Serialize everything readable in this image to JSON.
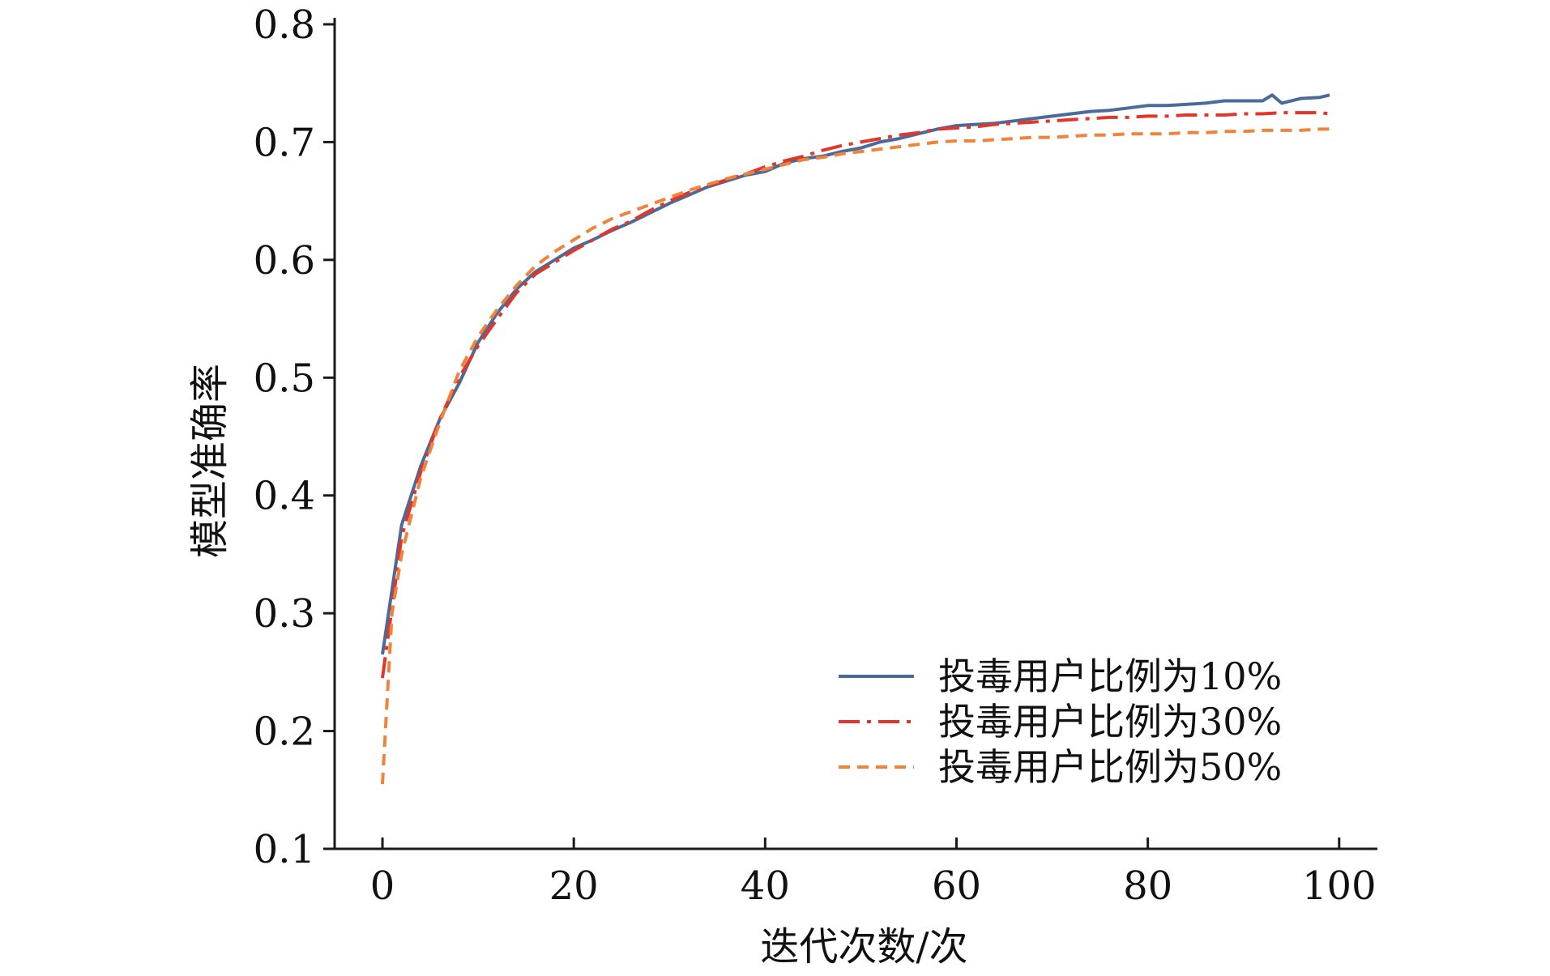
{
  "chart_data": {
    "type": "line",
    "title": "",
    "xlabel": "迭代次数/次",
    "ylabel": "模型准确率",
    "xlim": [
      -5,
      104
    ],
    "ylim": [
      0.1,
      0.8
    ],
    "xticks": [
      0,
      20,
      40,
      60,
      80,
      100
    ],
    "xtick_labels": [
      "0",
      "20",
      "40",
      "60",
      "80",
      "100"
    ],
    "yticks": [
      0.1,
      0.2,
      0.3,
      0.4,
      0.5,
      0.6,
      0.7,
      0.8
    ],
    "ytick_labels": [
      "0.1",
      "0.2",
      "0.3",
      "0.4",
      "0.5",
      "0.6",
      "0.7",
      "0.8"
    ],
    "grid": false,
    "legend_position": "bottom-right",
    "series": [
      {
        "name": "投毒用户比例为10%",
        "color": "#4a6a9b",
        "dash": "solid",
        "x": [
          0,
          2,
          4,
          6,
          8,
          10,
          12,
          14,
          16,
          18,
          20,
          22,
          24,
          26,
          28,
          30,
          32,
          34,
          36,
          38,
          40,
          42,
          44,
          46,
          48,
          50,
          52,
          54,
          56,
          58,
          60,
          62,
          64,
          66,
          68,
          70,
          72,
          74,
          76,
          78,
          80,
          82,
          84,
          86,
          88,
          90,
          92,
          93,
          94,
          96,
          98,
          99
        ],
        "y": [
          0.265,
          0.375,
          0.425,
          0.465,
          0.495,
          0.53,
          0.555,
          0.575,
          0.59,
          0.6,
          0.61,
          0.617,
          0.625,
          0.632,
          0.64,
          0.648,
          0.655,
          0.662,
          0.667,
          0.672,
          0.675,
          0.682,
          0.686,
          0.688,
          0.692,
          0.695,
          0.7,
          0.703,
          0.707,
          0.711,
          0.714,
          0.715,
          0.716,
          0.718,
          0.72,
          0.722,
          0.724,
          0.726,
          0.727,
          0.729,
          0.731,
          0.731,
          0.732,
          0.733,
          0.735,
          0.735,
          0.735,
          0.74,
          0.733,
          0.737,
          0.738,
          0.74
        ]
      },
      {
        "name": "投毒用户比例为30%",
        "color": "#e0362b",
        "dash": "dashdot",
        "x": [
          0,
          2,
          4,
          6,
          8,
          10,
          12,
          14,
          16,
          18,
          20,
          22,
          24,
          26,
          28,
          30,
          32,
          34,
          36,
          38,
          40,
          42,
          44,
          46,
          48,
          50,
          52,
          54,
          56,
          58,
          60,
          62,
          64,
          66,
          68,
          70,
          72,
          74,
          76,
          78,
          80,
          82,
          84,
          86,
          88,
          90,
          92,
          94,
          96,
          98,
          99
        ],
        "y": [
          0.245,
          0.365,
          0.42,
          0.465,
          0.5,
          0.527,
          0.55,
          0.572,
          0.588,
          0.598,
          0.608,
          0.617,
          0.626,
          0.633,
          0.642,
          0.65,
          0.657,
          0.663,
          0.668,
          0.673,
          0.679,
          0.684,
          0.688,
          0.693,
          0.697,
          0.7,
          0.703,
          0.706,
          0.708,
          0.711,
          0.712,
          0.713,
          0.715,
          0.716,
          0.717,
          0.718,
          0.719,
          0.72,
          0.721,
          0.721,
          0.722,
          0.722,
          0.723,
          0.723,
          0.723,
          0.724,
          0.724,
          0.725,
          0.725,
          0.725,
          0.724
        ]
      },
      {
        "name": "投毒用户比例为50%",
        "color": "#f0823a",
        "dash": "dashed",
        "x": [
          0,
          1,
          2,
          4,
          6,
          8,
          10,
          12,
          14,
          16,
          18,
          20,
          22,
          24,
          26,
          28,
          30,
          32,
          34,
          36,
          38,
          40,
          42,
          44,
          46,
          48,
          50,
          52,
          54,
          56,
          58,
          60,
          62,
          64,
          66,
          68,
          70,
          72,
          74,
          76,
          78,
          80,
          82,
          84,
          86,
          88,
          90,
          92,
          94,
          96,
          98,
          99
        ],
        "y": [
          0.155,
          0.3,
          0.35,
          0.415,
          0.462,
          0.505,
          0.535,
          0.558,
          0.578,
          0.595,
          0.607,
          0.617,
          0.627,
          0.635,
          0.641,
          0.647,
          0.653,
          0.659,
          0.664,
          0.669,
          0.673,
          0.677,
          0.681,
          0.685,
          0.687,
          0.69,
          0.692,
          0.694,
          0.696,
          0.698,
          0.7,
          0.701,
          0.701,
          0.702,
          0.703,
          0.704,
          0.704,
          0.705,
          0.706,
          0.706,
          0.707,
          0.707,
          0.707,
          0.708,
          0.708,
          0.709,
          0.709,
          0.71,
          0.71,
          0.71,
          0.711,
          0.711
        ]
      }
    ]
  }
}
